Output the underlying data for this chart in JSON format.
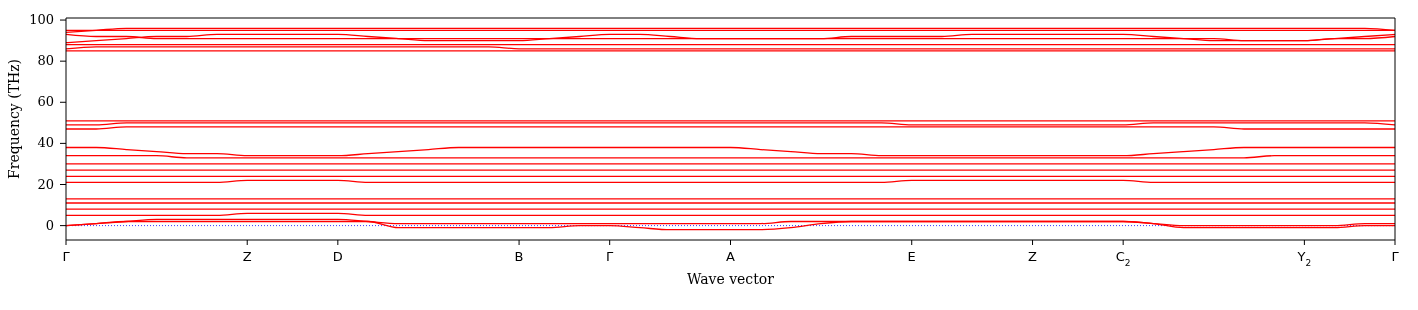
{
  "chart_data": {
    "type": "line",
    "xlabel": "Wave vector",
    "ylabel": "Frequency (THz)",
    "categories": [
      "Γ",
      null,
      null,
      null,
      null,
      null,
      "Z",
      null,
      null,
      "D",
      null,
      null,
      null,
      null,
      null,
      "B",
      null,
      null,
      "Γ",
      null,
      null,
      null,
      "A",
      null,
      null,
      null,
      null,
      null,
      "E",
      null,
      null,
      null,
      "Z",
      null,
      null,
      "C$_{2}$",
      null,
      null,
      null,
      null,
      null,
      "Y$_{2}$",
      null,
      null,
      "Γ"
    ],
    "ylim": [
      -7,
      101
    ],
    "yticks": [
      0,
      20,
      40,
      60,
      80,
      100
    ],
    "line_style": "solid",
    "ref_lines": [
      {
        "axis": "y",
        "value": 0,
        "color": "#0000ff",
        "line_style": "dotted"
      }
    ],
    "series": [
      {
        "color": "#ff0000",
        "values": [
          95,
          95,
          95,
          95,
          95,
          95,
          95,
          95,
          95,
          95,
          95,
          95,
          95,
          95,
          95,
          95,
          95,
          95,
          95,
          95,
          95,
          95,
          95,
          95,
          95,
          95,
          95,
          95,
          95,
          95,
          95,
          95,
          95,
          95,
          95,
          95,
          95,
          95,
          95,
          95,
          95,
          95,
          95,
          95,
          95
        ]
      },
      {
        "color": "#ff0000",
        "values": [
          94,
          95,
          96,
          96,
          96,
          96,
          96,
          96,
          96,
          96,
          96,
          96,
          96,
          96,
          96,
          96,
          96,
          96,
          96,
          96,
          96,
          96,
          96,
          96,
          96,
          96,
          96,
          96,
          96,
          96,
          96,
          96,
          96,
          96,
          96,
          96,
          96,
          96,
          96,
          96,
          96,
          96,
          96,
          96,
          95
        ]
      },
      {
        "color": "#ff0000",
        "values": [
          93,
          92,
          92,
          91,
          91,
          91,
          91,
          91,
          91,
          91,
          91,
          91,
          91,
          91,
          91,
          91,
          91,
          91,
          91,
          91,
          91,
          91,
          91,
          91,
          91,
          91,
          91,
          91,
          91,
          91,
          91,
          91,
          91,
          91,
          91,
          91,
          91,
          91,
          91,
          90,
          90,
          90,
          91,
          91,
          92
        ]
      },
      {
        "color": "#ff0000",
        "values": [
          89,
          90,
          91,
          92,
          92,
          93,
          93,
          93,
          93,
          93,
          92,
          91,
          90,
          90,
          90,
          90,
          91,
          92,
          93,
          93,
          92,
          91,
          91,
          91,
          91,
          91,
          92,
          92,
          92,
          92,
          93,
          93,
          93,
          93,
          93,
          93,
          92,
          91,
          90,
          90,
          90,
          90,
          91,
          92,
          93
        ]
      },
      {
        "color": "#ff0000",
        "values": [
          88,
          88,
          88,
          88,
          88,
          88,
          88,
          88,
          88,
          88,
          88,
          88,
          88,
          88,
          88,
          88,
          88,
          88,
          88,
          88,
          88,
          88,
          88,
          88,
          88,
          88,
          88,
          88,
          88,
          88,
          88,
          88,
          88,
          88,
          88,
          88,
          88,
          88,
          88,
          88,
          88,
          88,
          88,
          88,
          88
        ]
      },
      {
        "color": "#ff0000",
        "values": [
          86,
          87,
          87,
          87,
          87,
          87,
          87,
          87,
          87,
          87,
          87,
          87,
          87,
          87,
          87,
          86,
          86,
          86,
          86,
          86,
          86,
          86,
          86,
          86,
          86,
          86,
          86,
          86,
          86,
          86,
          86,
          86,
          86,
          86,
          86,
          86,
          86,
          86,
          86,
          86,
          86,
          86,
          86,
          86,
          86
        ]
      },
      {
        "color": "#ff0000",
        "values": [
          85,
          85,
          85,
          85,
          85,
          85,
          85,
          85,
          85,
          85,
          85,
          85,
          85,
          85,
          85,
          85,
          85,
          85,
          85,
          85,
          85,
          85,
          85,
          85,
          85,
          85,
          85,
          85,
          85,
          85,
          85,
          85,
          85,
          85,
          85,
          85,
          85,
          85,
          85,
          85,
          85,
          85,
          85,
          85,
          85
        ]
      },
      {
        "color": "#ff0000",
        "values": [
          51,
          51,
          51,
          51,
          51,
          51,
          51,
          51,
          51,
          51,
          51,
          51,
          51,
          51,
          51,
          51,
          51,
          51,
          51,
          51,
          51,
          51,
          51,
          51,
          51,
          51,
          51,
          51,
          51,
          51,
          51,
          51,
          51,
          51,
          51,
          51,
          51,
          51,
          51,
          51,
          51,
          51,
          51,
          51,
          51
        ]
      },
      {
        "color": "#ff0000",
        "values": [
          49,
          49,
          50,
          50,
          50,
          50,
          50,
          50,
          50,
          50,
          50,
          50,
          50,
          50,
          50,
          50,
          50,
          50,
          50,
          50,
          50,
          50,
          50,
          50,
          50,
          50,
          50,
          50,
          49,
          49,
          49,
          49,
          49,
          49,
          49,
          49,
          50,
          50,
          50,
          50,
          50,
          50,
          50,
          50,
          49
        ]
      },
      {
        "color": "#ff0000",
        "values": [
          47,
          47,
          48,
          48,
          48,
          48,
          48,
          48,
          48,
          48,
          48,
          48,
          48,
          48,
          48,
          48,
          48,
          48,
          48,
          48,
          48,
          48,
          48,
          48,
          48,
          48,
          48,
          48,
          48,
          48,
          48,
          48,
          48,
          48,
          48,
          48,
          48,
          48,
          48,
          47,
          47,
          47,
          47,
          47,
          47
        ]
      },
      {
        "color": "#ff0000",
        "values": [
          38,
          38,
          37,
          36,
          35,
          35,
          34,
          34,
          34,
          34,
          35,
          36,
          37,
          38,
          38,
          38,
          38,
          38,
          38,
          38,
          38,
          38,
          38,
          37,
          36,
          35,
          35,
          34,
          34,
          34,
          34,
          34,
          34,
          34,
          34,
          34,
          35,
          36,
          37,
          38,
          38,
          38,
          38,
          38,
          38
        ]
      },
      {
        "color": "#ff0000",
        "values": [
          34,
          34,
          34,
          34,
          33,
          33,
          33,
          33,
          33,
          33,
          33,
          33,
          33,
          33,
          33,
          33,
          33,
          33,
          33,
          33,
          33,
          33,
          33,
          33,
          33,
          33,
          33,
          33,
          33,
          33,
          33,
          33,
          33,
          33,
          33,
          33,
          33,
          33,
          33,
          33,
          34,
          34,
          34,
          34,
          34
        ]
      },
      {
        "color": "#ff0000",
        "values": [
          30,
          30,
          30,
          30,
          30,
          30,
          30,
          30,
          30,
          30,
          30,
          30,
          30,
          30,
          30,
          30,
          30,
          30,
          30,
          30,
          30,
          30,
          30,
          30,
          30,
          30,
          30,
          30,
          30,
          30,
          30,
          30,
          30,
          30,
          30,
          30,
          30,
          30,
          30,
          30,
          30,
          30,
          30,
          30,
          30
        ]
      },
      {
        "color": "#ff0000",
        "values": [
          27,
          27,
          27,
          27,
          27,
          27,
          27,
          27,
          27,
          27,
          27,
          27,
          27,
          27,
          27,
          27,
          27,
          27,
          27,
          27,
          27,
          27,
          27,
          27,
          27,
          27,
          27,
          27,
          27,
          27,
          27,
          27,
          27,
          27,
          27,
          27,
          27,
          27,
          27,
          27,
          27,
          27,
          27,
          27,
          27
        ]
      },
      {
        "color": "#ff0000",
        "values": [
          24,
          24,
          24,
          24,
          24,
          24,
          24,
          24,
          24,
          24,
          24,
          24,
          24,
          24,
          24,
          24,
          24,
          24,
          24,
          24,
          24,
          24,
          24,
          24,
          24,
          24,
          24,
          24,
          24,
          24,
          24,
          24,
          24,
          24,
          24,
          24,
          24,
          24,
          24,
          24,
          24,
          24,
          24,
          24,
          24
        ]
      },
      {
        "color": "#ff0000",
        "values": [
          21,
          21,
          21,
          21,
          21,
          21,
          22,
          22,
          22,
          22,
          21,
          21,
          21,
          21,
          21,
          21,
          21,
          21,
          21,
          21,
          21,
          21,
          21,
          21,
          21,
          21,
          21,
          21,
          22,
          22,
          22,
          22,
          22,
          22,
          22,
          22,
          21,
          21,
          21,
          21,
          21,
          21,
          21,
          21,
          21
        ]
      },
      {
        "color": "#ff0000",
        "values": [
          13,
          13,
          13,
          13,
          13,
          13,
          13,
          13,
          13,
          13,
          13,
          13,
          13,
          13,
          13,
          13,
          13,
          13,
          13,
          13,
          13,
          13,
          13,
          13,
          13,
          13,
          13,
          13,
          13,
          13,
          13,
          13,
          13,
          13,
          13,
          13,
          13,
          13,
          13,
          13,
          13,
          13,
          13,
          13,
          13
        ]
      },
      {
        "color": "#ff0000",
        "values": [
          11,
          11,
          11,
          11,
          11,
          11,
          11,
          11,
          11,
          11,
          11,
          11,
          11,
          11,
          11,
          11,
          11,
          11,
          11,
          11,
          11,
          11,
          11,
          11,
          11,
          11,
          11,
          11,
          11,
          11,
          11,
          11,
          11,
          11,
          11,
          11,
          11,
          11,
          11,
          11,
          11,
          11,
          11,
          11,
          11
        ]
      },
      {
        "color": "#ff0000",
        "values": [
          8,
          8,
          8,
          8,
          8,
          8,
          8,
          8,
          8,
          8,
          8,
          8,
          8,
          8,
          8,
          8,
          8,
          8,
          8,
          8,
          8,
          8,
          8,
          8,
          8,
          8,
          8,
          8,
          8,
          8,
          8,
          8,
          8,
          8,
          8,
          8,
          8,
          8,
          8,
          8,
          8,
          8,
          8,
          8,
          8
        ]
      },
      {
        "color": "#ff0000",
        "values": [
          5,
          5,
          5,
          5,
          5,
          5,
          6,
          6,
          6,
          6,
          5,
          5,
          5,
          5,
          5,
          5,
          5,
          5,
          5,
          5,
          5,
          5,
          5,
          5,
          5,
          5,
          5,
          5,
          5,
          5,
          5,
          5,
          5,
          5,
          5,
          5,
          5,
          5,
          5,
          5,
          5,
          5,
          5,
          5,
          5
        ]
      },
      {
        "color": "#ff0000",
        "values": [
          0,
          1,
          2,
          3,
          3,
          3,
          3,
          3,
          3,
          3,
          2,
          1,
          1,
          1,
          1,
          1,
          1,
          1,
          1,
          1,
          1,
          1,
          1,
          1,
          2,
          2,
          2,
          2,
          2,
          2,
          2,
          2,
          2,
          2,
          2,
          2,
          1,
          0,
          0,
          0,
          0,
          0,
          0,
          1,
          1
        ]
      },
      {
        "color": "#ff0000",
        "values": [
          0,
          1,
          2,
          2,
          2,
          2,
          2,
          2,
          2,
          2,
          2,
          -1,
          -1,
          -1,
          -1,
          -1,
          -1,
          0,
          0,
          -1,
          -2,
          -2,
          -2,
          -2,
          -1,
          1,
          2,
          2,
          2,
          2,
          2,
          2,
          2,
          2,
          2,
          2,
          1,
          -1,
          -1,
          -1,
          -1,
          -1,
          -1,
          0,
          0
        ]
      }
    ]
  }
}
